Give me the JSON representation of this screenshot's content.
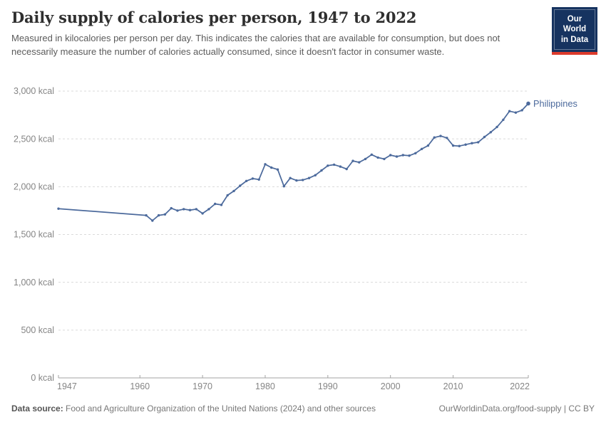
{
  "header": {
    "title": "Daily supply of calories per person, 1947 to 2022",
    "subtitle": "Measured in kilocalories per person per day. This indicates the calories that are available for consumption, but does not necessarily measure the number of calories actually consumed, since it doesn't factor in consumer waste.",
    "logo": {
      "line1": "Our World",
      "line2": "in Data",
      "bg_color": "#163360",
      "bar_color": "#dc3a2c"
    }
  },
  "chart_data": {
    "type": "line",
    "title": "Daily supply of calories per person, 1947 to 2022",
    "unit": "kcal",
    "xlabel": "",
    "ylabel": "",
    "xlim": [
      1947,
      2022
    ],
    "ylim": [
      0,
      3000
    ],
    "grid": "dashed-horizontal",
    "legend_position": "end-of-line",
    "line_color": "#4c6a9c",
    "x_ticks": [
      {
        "value": 1947,
        "label": "1947"
      },
      {
        "value": 1960,
        "label": "1960"
      },
      {
        "value": 1970,
        "label": "1970"
      },
      {
        "value": 1980,
        "label": "1980"
      },
      {
        "value": 1990,
        "label": "1990"
      },
      {
        "value": 2000,
        "label": "2000"
      },
      {
        "value": 2010,
        "label": "2010"
      },
      {
        "value": 2022,
        "label": "2022"
      }
    ],
    "y_ticks": [
      {
        "value": 0,
        "label": "0 kcal"
      },
      {
        "value": 500,
        "label": "500 kcal"
      },
      {
        "value": 1000,
        "label": "1,000 kcal"
      },
      {
        "value": 1500,
        "label": "1,500 kcal"
      },
      {
        "value": 2000,
        "label": "2,000 kcal"
      },
      {
        "value": 2500,
        "label": "2,500 kcal"
      },
      {
        "value": 3000,
        "label": "3,000 kcal"
      }
    ],
    "series": [
      {
        "name": "Philippines",
        "color": "#4c6a9c",
        "x": [
          1947,
          1961,
          1962,
          1963,
          1964,
          1965,
          1966,
          1967,
          1968,
          1969,
          1970,
          1971,
          1972,
          1973,
          1974,
          1975,
          1976,
          1977,
          1978,
          1979,
          1980,
          1981,
          1982,
          1983,
          1984,
          1985,
          1986,
          1987,
          1988,
          1989,
          1990,
          1991,
          1992,
          1993,
          1994,
          1995,
          1996,
          1997,
          1998,
          1999,
          2000,
          2001,
          2002,
          2003,
          2004,
          2005,
          2006,
          2007,
          2008,
          2009,
          2010,
          2011,
          2012,
          2013,
          2014,
          2015,
          2016,
          2017,
          2018,
          2019,
          2020,
          2021,
          2022
        ],
        "values": [
          1770,
          1700,
          1645,
          1700,
          1710,
          1775,
          1750,
          1765,
          1755,
          1765,
          1720,
          1765,
          1820,
          1810,
          1910,
          1955,
          2010,
          2060,
          2085,
          2075,
          2235,
          2200,
          2180,
          2005,
          2090,
          2065,
          2070,
          2090,
          2120,
          2170,
          2220,
          2230,
          2210,
          2185,
          2270,
          2255,
          2290,
          2335,
          2305,
          2290,
          2330,
          2315,
          2330,
          2325,
          2350,
          2395,
          2430,
          2515,
          2530,
          2510,
          2430,
          2425,
          2440,
          2455,
          2465,
          2520,
          2570,
          2625,
          2700,
          2790,
          2775,
          2800,
          2870
        ]
      }
    ]
  },
  "footer": {
    "source_label": "Data source:",
    "source_text": " Food and Agriculture Organization of the United Nations (2024) and other sources",
    "link_text": "OurWorldinData.org/food-supply | CC BY"
  }
}
